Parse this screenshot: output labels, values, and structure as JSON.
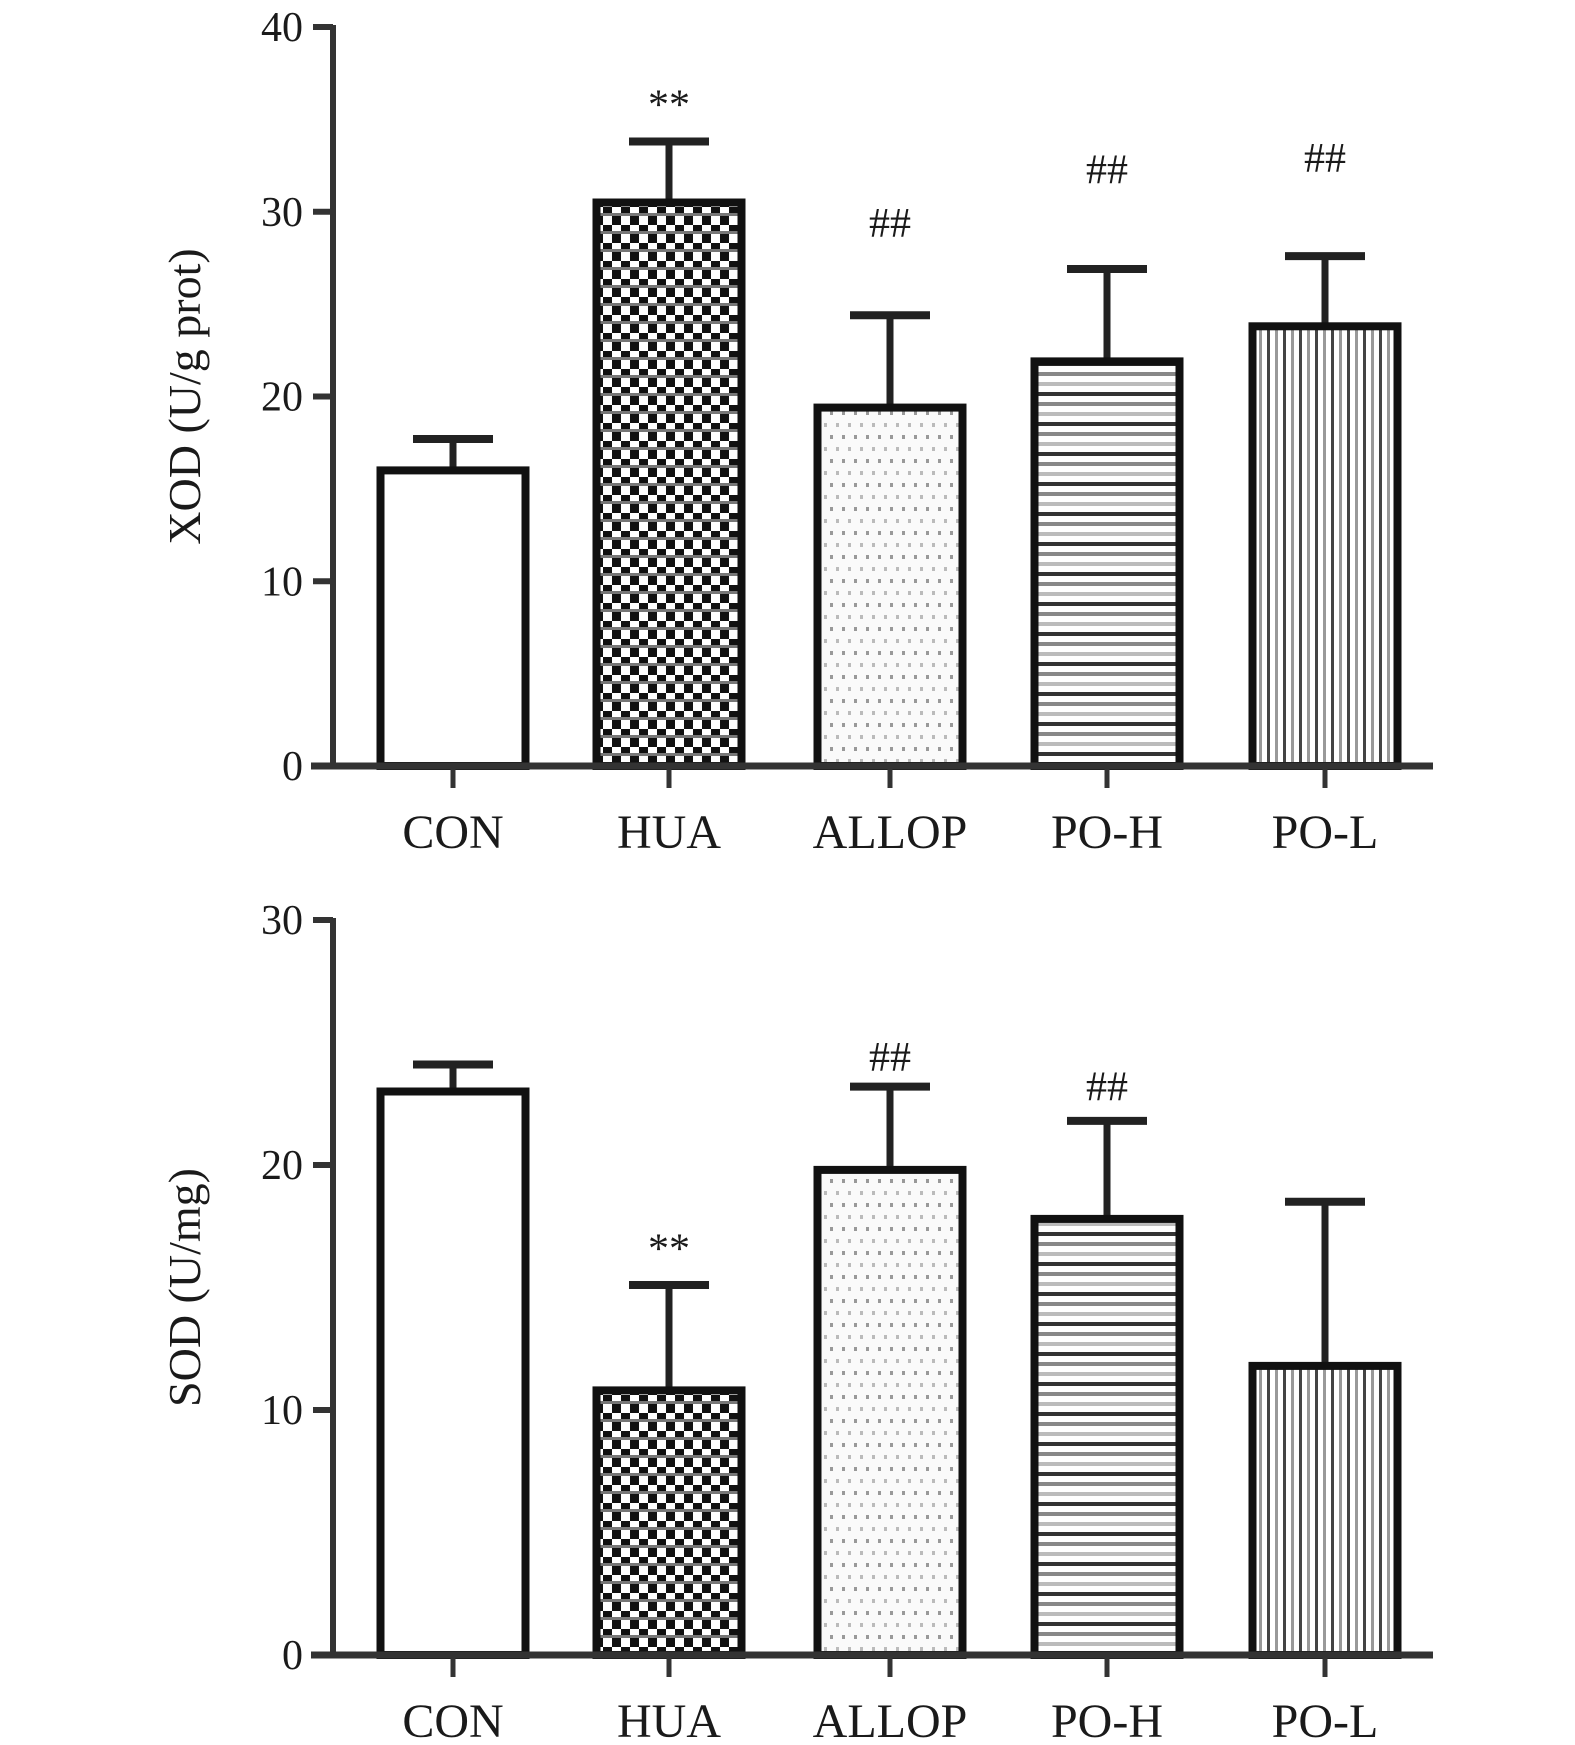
{
  "chart_data": [
    {
      "type": "bar",
      "title": "",
      "xlabel": "",
      "ylabel": "XOD (U/g prot)",
      "ylim": [
        0,
        40
      ],
      "yticks": [
        0,
        10,
        20,
        30,
        40
      ],
      "categories": [
        "CON",
        "HUA",
        "ALLOP",
        "PO-H",
        "PO-L"
      ],
      "values": [
        16.0,
        30.5,
        19.4,
        21.9,
        23.8
      ],
      "errors": [
        1.7,
        3.3,
        5.0,
        5.0,
        3.8
      ],
      "patterns": [
        "white",
        "checker",
        "dots",
        "hlines",
        "vlines"
      ],
      "annotations": [
        {
          "category": "HUA",
          "text": "**",
          "y": 35.8
        },
        {
          "category": "ALLOP",
          "text": "##",
          "y": 29.4
        },
        {
          "category": "PO-H",
          "text": "##",
          "y": 32.3
        },
        {
          "category": "PO-L",
          "text": "##",
          "y": 32.9
        }
      ]
    },
    {
      "type": "bar",
      "title": "",
      "xlabel": "",
      "ylabel": "SOD (U/mg)",
      "ylim": [
        0,
        30
      ],
      "yticks": [
        0,
        10,
        20,
        30
      ],
      "categories": [
        "CON",
        "HUA",
        "ALLOP",
        "PO-H",
        "PO-L"
      ],
      "values": [
        23.0,
        10.8,
        19.8,
        17.8,
        11.8
      ],
      "errors": [
        1.1,
        4.3,
        3.4,
        4.0,
        6.7
      ],
      "patterns": [
        "white",
        "checker",
        "dots",
        "hlines",
        "vlines"
      ],
      "annotations": [
        {
          "category": "HUA",
          "text": "**",
          "y": 16.6
        },
        {
          "category": "ALLOP",
          "text": "##",
          "y": 24.4
        },
        {
          "category": "PO-H",
          "text": "##",
          "y": 23.2
        }
      ]
    }
  ]
}
